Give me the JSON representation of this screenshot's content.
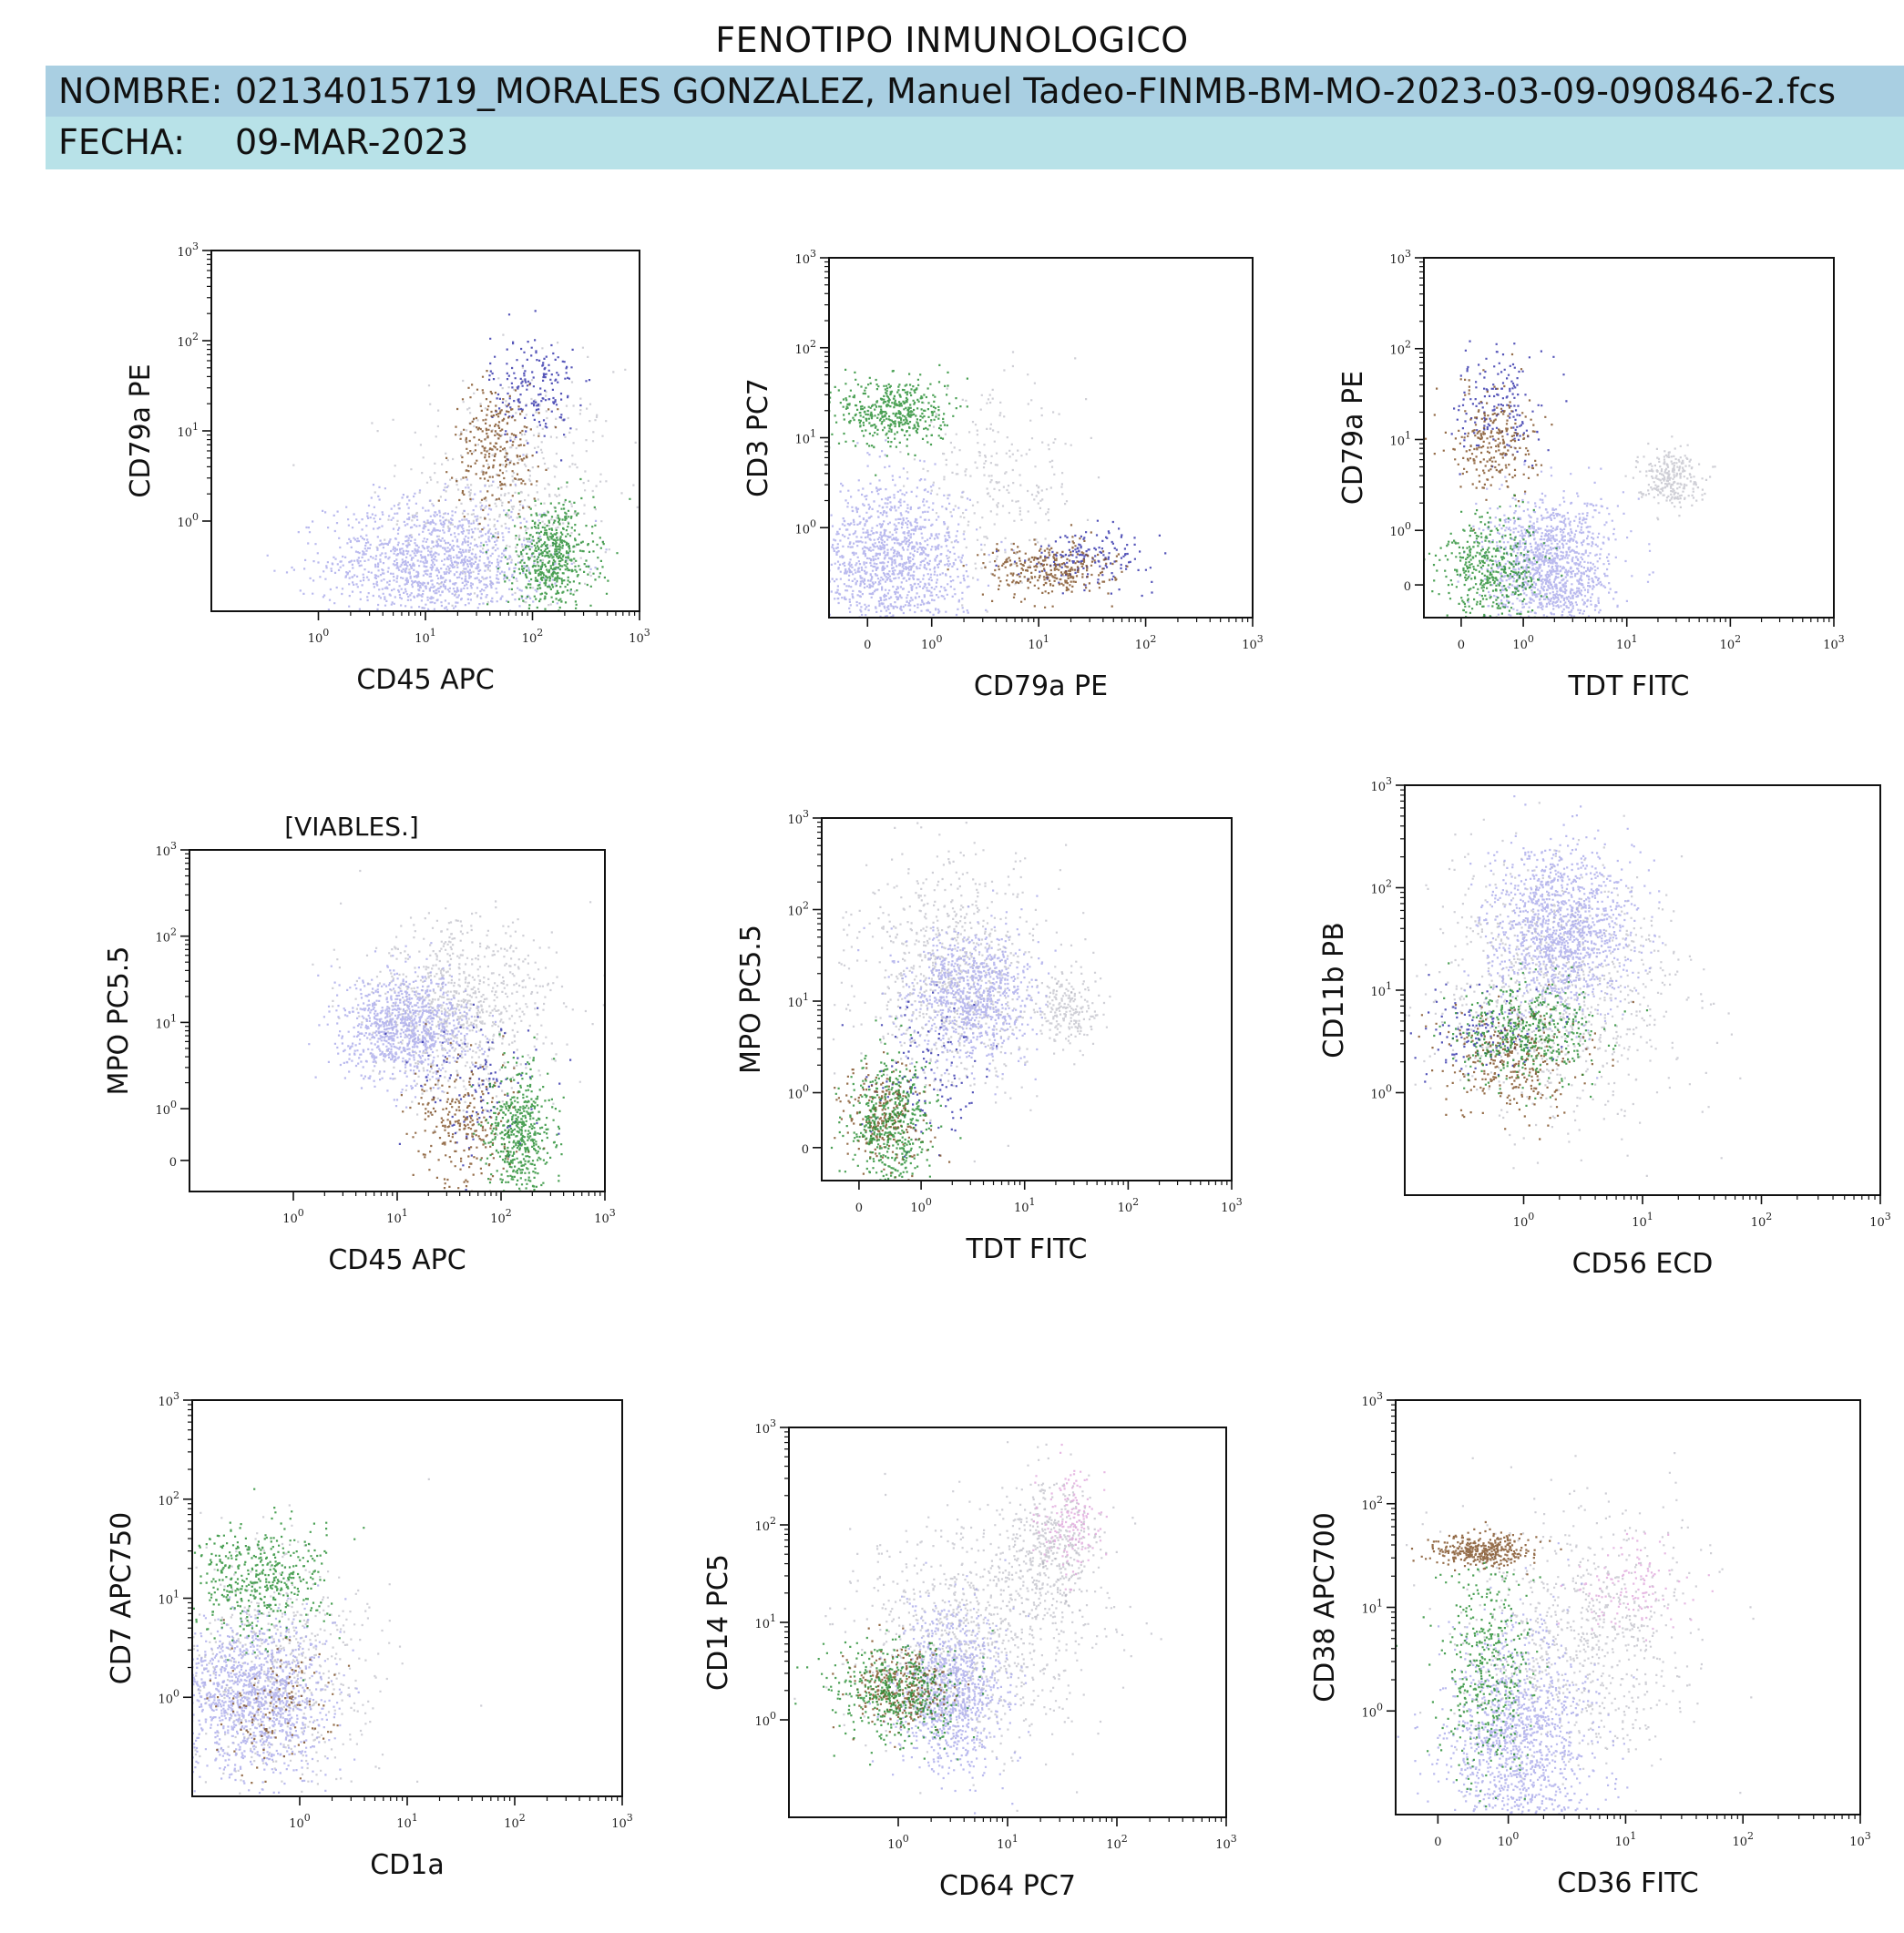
{
  "header": {
    "title": "FENOTIPO INMUNOLOGICO",
    "name_label": "NOMBRE:",
    "name_value": "02134015719_MORALES GONZALEZ, Manuel Tadeo-FINMB-BM-MO-2023-03-09-090846-2.fcs",
    "date_label": "FECHA:",
    "date_value": "09-MAR-2023"
  },
  "colors": {
    "band_name": "#a9cfe2",
    "band_date": "#b8e2e8",
    "population_lavender": "#a9a9ea",
    "population_gray": "#a7a7b5",
    "population_green": "#1f8a2c",
    "population_brown": "#7a4a1e",
    "population_blue": "#2c2ca8",
    "population_pink": "#e0a8dc"
  },
  "chart_data": [
    {
      "type": "scatter",
      "xlabel": "CD45 APC",
      "ylabel": "CD79a PE",
      "xscale": "log",
      "yscale": "log",
      "xlim": [
        0.1,
        1000
      ],
      "ylim": [
        0.1,
        1000
      ],
      "xticks": [
        {
          "v": 1,
          "e": "0"
        },
        {
          "v": 10,
          "e": "1"
        },
        {
          "v": 100,
          "e": "2"
        },
        {
          "v": 1000,
          "e": "3"
        }
      ],
      "yticks": [
        {
          "v": 1,
          "e": "0"
        },
        {
          "v": 10,
          "e": "1"
        },
        {
          "v": 100,
          "e": "2"
        },
        {
          "v": 1000,
          "e": "3"
        }
      ],
      "populations": [
        {
          "color": "lavender",
          "x": 12,
          "y": 0.35,
          "sx": 0.5,
          "sy": 0.35,
          "n": 1300
        },
        {
          "color": "gray",
          "x": 60,
          "y": 2,
          "sx": 0.5,
          "sy": 0.7,
          "n": 450
        },
        {
          "color": "green",
          "x": 150,
          "y": 0.4,
          "sx": 0.2,
          "sy": 0.3,
          "n": 550
        },
        {
          "color": "brown",
          "x": 45,
          "y": 7,
          "sx": 0.2,
          "sy": 0.35,
          "n": 260
        },
        {
          "color": "blue",
          "x": 100,
          "y": 30,
          "sx": 0.2,
          "sy": 0.3,
          "n": 180
        }
      ]
    },
    {
      "type": "scatter",
      "xlabel": "CD79a PE",
      "ylabel": "CD3 PC7",
      "xscale": "biexp",
      "yscale": "log",
      "xlim": [
        -0.6,
        1000
      ],
      "ylim": [
        0.1,
        1000
      ],
      "xticks": [
        {
          "v": 0,
          "e": ""
        },
        {
          "v": 1,
          "e": "0"
        },
        {
          "v": 10,
          "e": "1"
        },
        {
          "v": 100,
          "e": "2"
        },
        {
          "v": 1000,
          "e": "3"
        }
      ],
      "yticks": [
        {
          "v": 1,
          "e": "0"
        },
        {
          "v": 10,
          "e": "1"
        },
        {
          "v": 100,
          "e": "2"
        },
        {
          "v": 1000,
          "e": "3"
        }
      ],
      "populations": [
        {
          "color": "lavender",
          "x": 0.35,
          "y": 0.4,
          "sx": 0.35,
          "sy": 0.45,
          "n": 1300
        },
        {
          "color": "gray",
          "x": 4,
          "y": 3,
          "sx": 0.4,
          "sy": 0.5,
          "n": 250
        },
        {
          "color": "green",
          "x": 0.4,
          "y": 20,
          "sx": 0.25,
          "sy": 0.2,
          "n": 450
        },
        {
          "color": "brown",
          "x": 12,
          "y": 0.35,
          "sx": 0.3,
          "sy": 0.15,
          "n": 300
        },
        {
          "color": "blue",
          "x": 30,
          "y": 0.5,
          "sx": 0.3,
          "sy": 0.15,
          "n": 160
        }
      ]
    },
    {
      "type": "scatter",
      "xlabel": "TDT FITC",
      "ylabel": "CD79a PE",
      "xscale": "biexp",
      "yscale": "biexp",
      "xlim": [
        -0.6,
        1000
      ],
      "ylim": [
        -0.6,
        1000
      ],
      "xticks": [
        {
          "v": 0,
          "e": ""
        },
        {
          "v": 1,
          "e": "0"
        },
        {
          "v": 10,
          "e": "1"
        },
        {
          "v": 100,
          "e": "2"
        },
        {
          "v": 1000,
          "e": "3"
        }
      ],
      "yticks": [
        {
          "v": 0,
          "e": ""
        },
        {
          "v": 1,
          "e": "0"
        },
        {
          "v": 10,
          "e": "1"
        },
        {
          "v": 100,
          "e": "2"
        },
        {
          "v": 1000,
          "e": "3"
        }
      ],
      "populations": [
        {
          "color": "lavender",
          "x": 1.8,
          "y": 0.3,
          "sx": 0.3,
          "sy": 0.4,
          "n": 1300
        },
        {
          "color": "gray",
          "x": 25,
          "y": 4,
          "sx": 0.15,
          "sy": 0.15,
          "n": 260
        },
        {
          "color": "green",
          "x": 0.5,
          "y": 0.3,
          "sx": 0.25,
          "sy": 0.3,
          "n": 450
        },
        {
          "color": "brown",
          "x": 0.5,
          "y": 10,
          "sx": 0.2,
          "sy": 0.3,
          "n": 250
        },
        {
          "color": "blue",
          "x": 0.6,
          "y": 25,
          "sx": 0.2,
          "sy": 0.3,
          "n": 160
        }
      ]
    },
    {
      "type": "scatter",
      "title": "[VIABLES.]",
      "xlabel": "CD45 APC",
      "ylabel": "MPO PC5.5",
      "xscale": "log",
      "yscale": "biexp",
      "xlim": [
        0.1,
        1000
      ],
      "ylim": [
        -0.6,
        1000
      ],
      "xticks": [
        {
          "v": 1,
          "e": "0"
        },
        {
          "v": 10,
          "e": "1"
        },
        {
          "v": 100,
          "e": "2"
        },
        {
          "v": 1000,
          "e": "3"
        }
      ],
      "yticks": [
        {
          "v": 0,
          "e": ""
        },
        {
          "v": 1,
          "e": "0"
        },
        {
          "v": 10,
          "e": "1"
        },
        {
          "v": 100,
          "e": "2"
        },
        {
          "v": 1000,
          "e": "3"
        }
      ],
      "populations": [
        {
          "color": "lavender",
          "x": 12,
          "y": 9,
          "sx": 0.3,
          "sy": 0.3,
          "n": 1000
        },
        {
          "color": "gray",
          "x": 40,
          "y": 15,
          "sx": 0.45,
          "sy": 0.5,
          "n": 800
        },
        {
          "color": "green",
          "x": 150,
          "y": 0.5,
          "sx": 0.15,
          "sy": 0.4,
          "n": 500
        },
        {
          "color": "brown",
          "x": 45,
          "y": 0.7,
          "sx": 0.25,
          "sy": 0.4,
          "n": 260
        },
        {
          "color": "blue",
          "x": 60,
          "y": 2,
          "sx": 0.3,
          "sy": 0.4,
          "n": 120
        }
      ]
    },
    {
      "type": "scatter",
      "xlabel": "TDT FITC",
      "ylabel": "MPO PC5.5",
      "xscale": "biexp",
      "yscale": "biexp",
      "xlim": [
        -0.6,
        1000
      ],
      "ylim": [
        -0.6,
        1000
      ],
      "xticks": [
        {
          "v": 0,
          "e": ""
        },
        {
          "v": 1,
          "e": "0"
        },
        {
          "v": 10,
          "e": "1"
        },
        {
          "v": 100,
          "e": "2"
        },
        {
          "v": 1000,
          "e": "3"
        }
      ],
      "yticks": [
        {
          "v": 0,
          "e": ""
        },
        {
          "v": 1,
          "e": "0"
        },
        {
          "v": 10,
          "e": "1"
        },
        {
          "v": 100,
          "e": "2"
        },
        {
          "v": 1000,
          "e": "3"
        }
      ],
      "populations": [
        {
          "color": "lavender",
          "x": 3,
          "y": 12,
          "sx": 0.3,
          "sy": 0.35,
          "n": 900
        },
        {
          "color": "gray",
          "x": 2,
          "y": 20,
          "sx": 0.45,
          "sy": 0.6,
          "n": 800
        },
        {
          "color": "gray",
          "x": 25,
          "y": 8,
          "sx": 0.15,
          "sy": 0.2,
          "n": 200
        },
        {
          "color": "green",
          "x": 0.5,
          "y": 0.4,
          "sx": 0.2,
          "sy": 0.4,
          "n": 500
        },
        {
          "color": "brown",
          "x": 0.4,
          "y": 0.5,
          "sx": 0.2,
          "sy": 0.3,
          "n": 260
        },
        {
          "color": "blue",
          "x": 1,
          "y": 1.5,
          "sx": 0.3,
          "sy": 0.4,
          "n": 120
        }
      ]
    },
    {
      "type": "scatter",
      "xlabel": "CD56 ECD",
      "ylabel": "CD11b PB",
      "xscale": "log",
      "yscale": "log",
      "xlim": [
        0.1,
        1000
      ],
      "ylim": [
        0.1,
        1000
      ],
      "xticks": [
        {
          "v": 1,
          "e": "0"
        },
        {
          "v": 10,
          "e": "1"
        },
        {
          "v": 100,
          "e": "2"
        },
        {
          "v": 1000,
          "e": "3"
        }
      ],
      "yticks": [
        {
          "v": 1,
          "e": "0"
        },
        {
          "v": 10,
          "e": "1"
        },
        {
          "v": 100,
          "e": "2"
        },
        {
          "v": 1000,
          "e": "3"
        }
      ],
      "populations": [
        {
          "color": "lavender",
          "x": 2,
          "y": 40,
          "sx": 0.3,
          "sy": 0.4,
          "n": 1300
        },
        {
          "color": "gray",
          "x": 2,
          "y": 10,
          "sx": 0.55,
          "sy": 0.6,
          "n": 900
        },
        {
          "color": "green",
          "x": 1,
          "y": 4,
          "sx": 0.3,
          "sy": 0.25,
          "n": 450
        },
        {
          "color": "brown",
          "x": 0.8,
          "y": 2,
          "sx": 0.3,
          "sy": 0.25,
          "n": 300
        },
        {
          "color": "blue",
          "x": 0.5,
          "y": 4,
          "sx": 0.3,
          "sy": 0.2,
          "n": 140
        }
      ]
    },
    {
      "type": "scatter",
      "xlabel": "CD1a",
      "ylabel": "CD7 APC750",
      "xscale": "log",
      "yscale": "log",
      "xlim": [
        0.1,
        1000
      ],
      "ylim": [
        0.1,
        1000
      ],
      "xticks": [
        {
          "v": 1,
          "e": "0"
        },
        {
          "v": 10,
          "e": "1"
        },
        {
          "v": 100,
          "e": "2"
        },
        {
          "v": 1000,
          "e": "3"
        }
      ],
      "yticks": [
        {
          "v": 1,
          "e": "0"
        },
        {
          "v": 10,
          "e": "1"
        },
        {
          "v": 100,
          "e": "2"
        },
        {
          "v": 1000,
          "e": "3"
        }
      ],
      "populations": [
        {
          "color": "lavender",
          "x": 0.35,
          "y": 1,
          "sx": 0.35,
          "sy": 0.4,
          "n": 1300
        },
        {
          "color": "gray",
          "x": 0.6,
          "y": 2,
          "sx": 0.45,
          "sy": 0.6,
          "n": 600
        },
        {
          "color": "green",
          "x": 0.4,
          "y": 15,
          "sx": 0.3,
          "sy": 0.3,
          "n": 450
        },
        {
          "color": "brown",
          "x": 0.5,
          "y": 0.8,
          "sx": 0.3,
          "sy": 0.3,
          "n": 120
        }
      ]
    },
    {
      "type": "scatter",
      "xlabel": "CD64 PC7",
      "ylabel": "CD14 PC5",
      "xscale": "log",
      "yscale": "log",
      "xlim": [
        0.1,
        1000
      ],
      "ylim": [
        0.1,
        1000
      ],
      "xticks": [
        {
          "v": 1,
          "e": "0"
        },
        {
          "v": 10,
          "e": "1"
        },
        {
          "v": 100,
          "e": "2"
        },
        {
          "v": 1000,
          "e": "3"
        }
      ],
      "yticks": [
        {
          "v": 1,
          "e": "0"
        },
        {
          "v": 10,
          "e": "1"
        },
        {
          "v": 100,
          "e": "2"
        },
        {
          "v": 1000,
          "e": "3"
        }
      ],
      "populations": [
        {
          "color": "lavender",
          "x": 3,
          "y": 2,
          "sx": 0.25,
          "sy": 0.4,
          "n": 1000
        },
        {
          "color": "gray",
          "x": 5,
          "y": 8,
          "sx": 0.55,
          "sy": 0.6,
          "n": 900
        },
        {
          "color": "gray",
          "x": 25,
          "y": 60,
          "sx": 0.2,
          "sy": 0.35,
          "n": 400
        },
        {
          "color": "pink",
          "x": 35,
          "y": 120,
          "sx": 0.15,
          "sy": 0.25,
          "n": 160
        },
        {
          "color": "green",
          "x": 1,
          "y": 2,
          "sx": 0.3,
          "sy": 0.25,
          "n": 450
        },
        {
          "color": "brown",
          "x": 1,
          "y": 2.2,
          "sx": 0.2,
          "sy": 0.2,
          "n": 300
        }
      ]
    },
    {
      "type": "scatter",
      "xlabel": "CD36 FITC",
      "ylabel": "CD38 APC700",
      "xscale": "biexp",
      "yscale": "log",
      "xlim": [
        -0.6,
        1000
      ],
      "ylim": [
        0.1,
        1000
      ],
      "xticks": [
        {
          "v": 0,
          "e": ""
        },
        {
          "v": 1,
          "e": "0"
        },
        {
          "v": 10,
          "e": "1"
        },
        {
          "v": 100,
          "e": "2"
        },
        {
          "v": 1000,
          "e": "3"
        }
      ],
      "yticks": [
        {
          "v": 1,
          "e": "0"
        },
        {
          "v": 10,
          "e": "1"
        },
        {
          "v": 100,
          "e": "2"
        },
        {
          "v": 1000,
          "e": "3"
        }
      ],
      "populations": [
        {
          "color": "lavender",
          "x": 1.2,
          "y": 0.5,
          "sx": 0.3,
          "sy": 0.55,
          "n": 1300
        },
        {
          "color": "gray",
          "x": 4,
          "y": 5,
          "sx": 0.5,
          "sy": 0.6,
          "n": 800
        },
        {
          "color": "pink",
          "x": 12,
          "y": 15,
          "sx": 0.25,
          "sy": 0.2,
          "n": 120
        },
        {
          "color": "green",
          "x": 0.7,
          "y": 2,
          "sx": 0.2,
          "sy": 0.5,
          "n": 400
        },
        {
          "color": "brown",
          "x": 0.6,
          "y": 35,
          "sx": 0.2,
          "sy": 0.08,
          "n": 350
        }
      ]
    }
  ]
}
